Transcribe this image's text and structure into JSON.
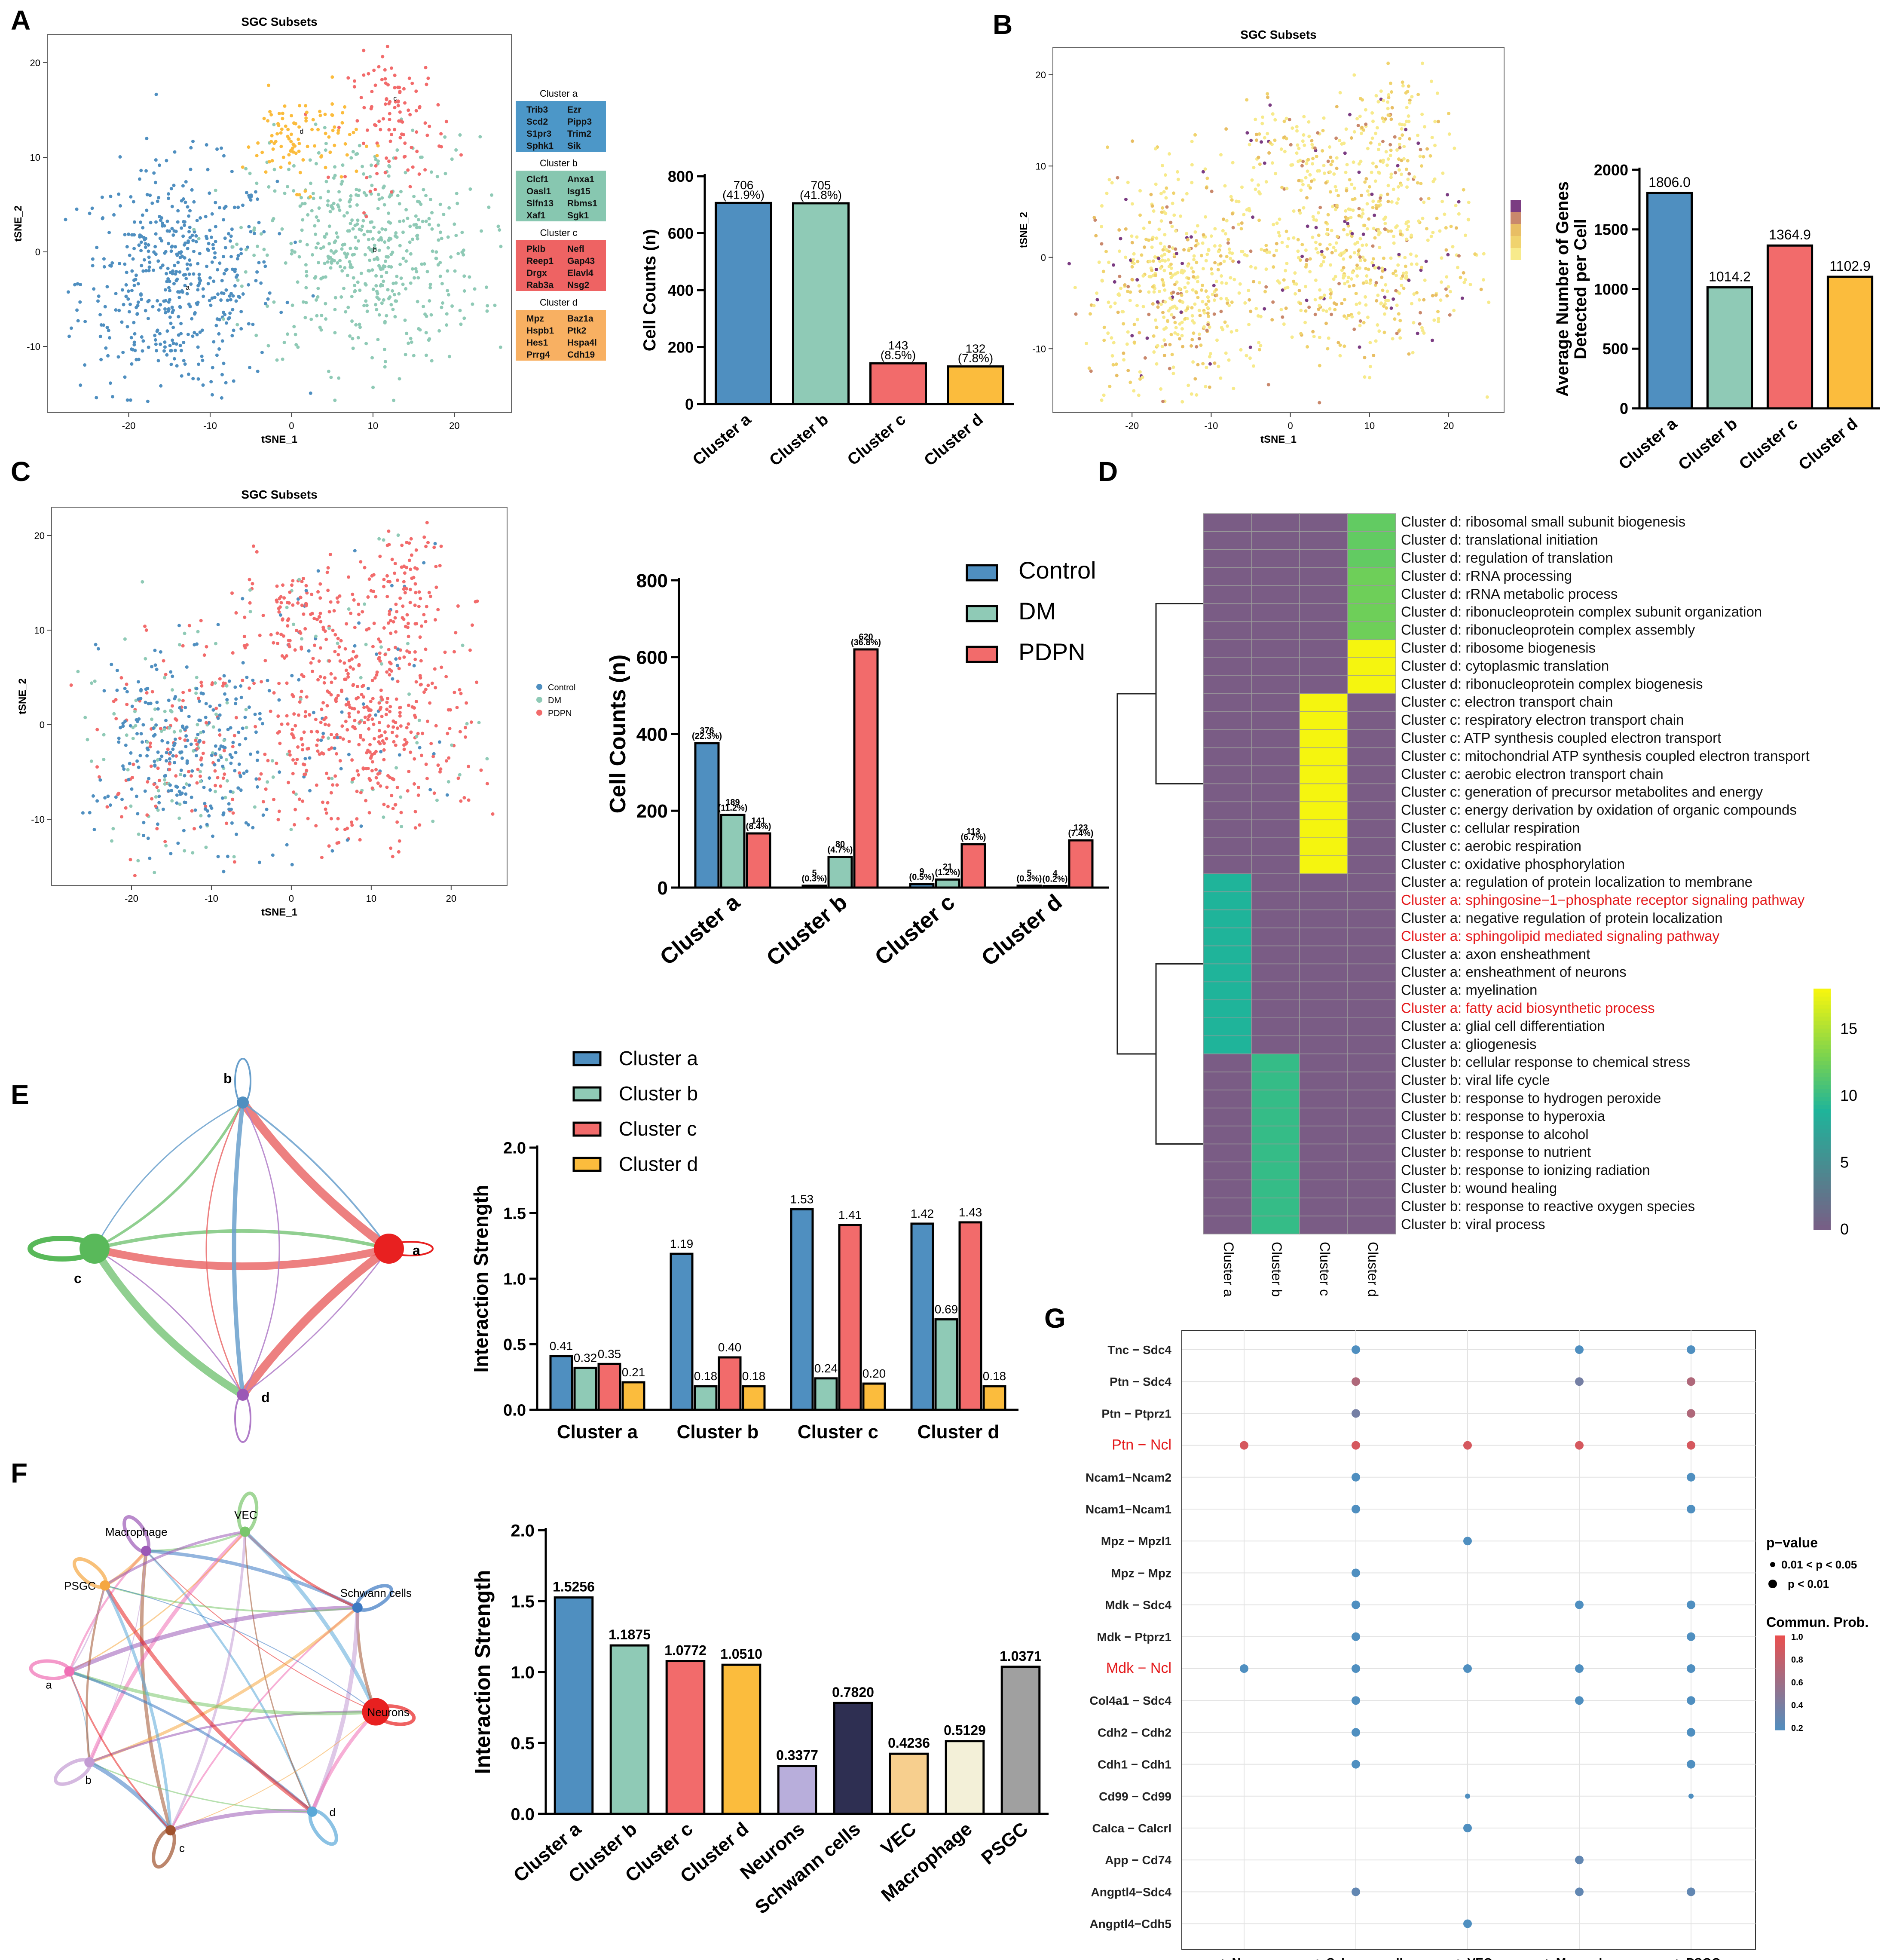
{
  "panel_labels": {
    "A": "A",
    "B": "B",
    "C": "C",
    "D": "D",
    "E": "E",
    "F": "F",
    "G": "G"
  },
  "colors": {
    "cluster_a": "#4f8fc0",
    "cluster_b": "#8fcab6",
    "cluster_c": "#f26b6b",
    "cluster_d": "#fbbc3d",
    "neurons": "#b8aedb",
    "schwann": "#2e2f52",
    "vec": "#f7cf8e",
    "macrophage": "#f3f0d8",
    "psgc": "#a0a0a0",
    "heat_low": "#7a5c85",
    "heat_mid": "#1fb49a",
    "heat_high": "#f5f50f",
    "red_text": "#e41a1c"
  },
  "tsne": {
    "title": "SGC Subsets",
    "xlabel": "tSNE_1",
    "ylabel": "tSNE_2",
    "x_ticks": [
      "-20",
      "-10",
      "0",
      "10",
      "20"
    ],
    "y_ticks": [
      "-10",
      "0",
      "10",
      "20"
    ],
    "point_labels": {
      "a": "a",
      "b": "b",
      "c": "c",
      "d": "d"
    }
  },
  "markers": [
    {
      "title": "Cluster a",
      "genes": [
        "Trib3",
        "Ezr",
        "Scd2",
        "Pipp3",
        "S1pr3",
        "Trim2",
        "Sphk1",
        "Sik"
      ]
    },
    {
      "title": "Cluster b",
      "genes": [
        "Clcf1",
        "Anxa1",
        "Oasl1",
        "Isg15",
        "Slfn13",
        "Rbms1",
        "Xaf1",
        "Sgk1"
      ]
    },
    {
      "title": "Cluster c",
      "genes": [
        "Pklb",
        "Nefl",
        "Reep1",
        "Gap43",
        "Drgx",
        "Elavl4",
        "Rab3a",
        "Nsg2"
      ]
    },
    {
      "title": "Cluster d",
      "genes": [
        "Mpz",
        "Baz1a",
        "Hspb1",
        "Ptk2",
        "Hes1",
        "Hspa4l",
        "Prrg4",
        "Cdh19"
      ]
    }
  ],
  "legend_C": [
    "Control",
    "DM",
    "PDPN"
  ],
  "legend_E": [
    "Cluster a",
    "Cluster b",
    "Cluster c",
    "Cluster d"
  ],
  "network_E_labels": [
    "a",
    "b",
    "c",
    "d"
  ],
  "network_F_labels": [
    "Macrophage",
    "VEC",
    "Schwann cells",
    "Neurons",
    "d",
    "c",
    "b",
    "a",
    "PSGC"
  ],
  "chart_data": [
    {
      "id": "A_bar",
      "type": "bar",
      "categories": [
        "Cluster a",
        "Cluster b",
        "Cluster c",
        "Cluster d"
      ],
      "values": [
        706,
        705,
        143,
        132
      ],
      "data_labels": [
        "706",
        "705",
        "143",
        "132"
      ],
      "data_labels_2": [
        "(41.9%)",
        "(41.8%)",
        "(8.5%)",
        "(7.8%)"
      ],
      "ylabel": "Cell Counts (n)",
      "ylim": [
        0,
        800
      ],
      "yticks": [
        "0",
        "200",
        "400",
        "600",
        "800"
      ]
    },
    {
      "id": "B_bar",
      "type": "bar",
      "categories": [
        "Cluster a",
        "Cluster b",
        "Cluster c",
        "Cluster d"
      ],
      "values": [
        1806.0,
        1014.2,
        1364.9,
        1102.9
      ],
      "data_labels": [
        "1806.0",
        "1014.2",
        "1364.9",
        "1102.9"
      ],
      "ylabel": "Average Number of Genes Detected per Cell",
      "ylim": [
        0,
        2000
      ],
      "yticks": [
        "0",
        "500",
        "1000",
        "1500",
        "2000"
      ]
    },
    {
      "id": "C_bar",
      "type": "bar",
      "categories": [
        "Cluster a",
        "Cluster b",
        "Cluster c",
        "Cluster d"
      ],
      "series": [
        {
          "name": "Control",
          "values": [
            376,
            5,
            9,
            5
          ],
          "labels": [
            "376",
            "5",
            "9",
            "5"
          ],
          "labels_2": [
            "(22.3%)",
            "(0.3%)",
            "(0.5%)",
            "(0.3%)"
          ]
        },
        {
          "name": "DM",
          "values": [
            189,
            80,
            21,
            4
          ],
          "labels": [
            "189",
            "80",
            "21",
            "4"
          ],
          "labels_2": [
            "(11.2%)",
            "(4.7%)",
            "(1.2%)",
            "(0.2%)"
          ]
        },
        {
          "name": "PDPN",
          "values": [
            141,
            620,
            113,
            123
          ],
          "labels": [
            "141",
            "620",
            "113",
            "123"
          ],
          "labels_2": [
            "(8.4%)",
            "(36.8%)",
            "(6.7%)",
            "(7.4%)"
          ]
        }
      ],
      "ylabel": "Cell Counts (n)",
      "ylim": [
        0,
        800
      ],
      "yticks": [
        "0",
        "200",
        "400",
        "600",
        "800"
      ]
    },
    {
      "id": "D_heatmap",
      "type": "heatmap",
      "columns": [
        "Cluster a",
        "Cluster b",
        "Cluster c",
        "Cluster d"
      ],
      "rows": [
        {
          "label": "Cluster d: ribosomal small subunit biogenesis",
          "col": 3,
          "value": 12
        },
        {
          "label": "Cluster d: translational initiation",
          "col": 3,
          "value": 12
        },
        {
          "label": "Cluster d: regulation of translation",
          "col": 3,
          "value": 12
        },
        {
          "label": "Cluster d: rRNA processing",
          "col": 3,
          "value": 12.5
        },
        {
          "label": "Cluster d: rRNA metabolic process",
          "col": 3,
          "value": 12.5
        },
        {
          "label": "Cluster d: ribonucleoprotein complex subunit organization",
          "col": 3,
          "value": 12.5
        },
        {
          "label": "Cluster d: ribonucleoprotein complex assembly",
          "col": 3,
          "value": 12.5
        },
        {
          "label": "Cluster d: ribosome biogenesis",
          "col": 3,
          "value": 18
        },
        {
          "label": "Cluster d: cytoplasmic translation",
          "col": 3,
          "value": 18
        },
        {
          "label": "Cluster d: ribonucleoprotein complex biogenesis",
          "col": 3,
          "value": 18
        },
        {
          "label": "Cluster c: electron transport chain",
          "col": 2,
          "value": 18
        },
        {
          "label": "Cluster c: respiratory electron transport chain",
          "col": 2,
          "value": 18
        },
        {
          "label": "Cluster c: ATP synthesis coupled electron transport",
          "col": 2,
          "value": 18
        },
        {
          "label": "Cluster c: mitochondrial ATP synthesis coupled electron transport",
          "col": 2,
          "value": 18
        },
        {
          "label": "Cluster c: aerobic electron transport chain",
          "col": 2,
          "value": 18
        },
        {
          "label": "Cluster c: generation of precursor metabolites and energy",
          "col": 2,
          "value": 18
        },
        {
          "label": "Cluster c: energy derivation by oxidation of organic compounds",
          "col": 2,
          "value": 18
        },
        {
          "label": "Cluster c: cellular respiration",
          "col": 2,
          "value": 18
        },
        {
          "label": "Cluster c: aerobic respiration",
          "col": 2,
          "value": 18
        },
        {
          "label": "Cluster c: oxidative phosphorylation",
          "col": 2,
          "value": 18
        },
        {
          "label": "Cluster a: regulation of protein localization to membrane",
          "col": 0,
          "value": 9
        },
        {
          "label": "Cluster a: sphingosine−1−phosphate receptor signaling pathway",
          "col": 0,
          "value": 9,
          "highlight": true
        },
        {
          "label": "Cluster a: negative regulation of protein localization",
          "col": 0,
          "value": 9
        },
        {
          "label": "Cluster a: sphingolipid mediated signaling pathway",
          "col": 0,
          "value": 9,
          "highlight": true
        },
        {
          "label": "Cluster a: axon ensheathment",
          "col": 0,
          "value": 9
        },
        {
          "label": "Cluster a: ensheathment of neurons",
          "col": 0,
          "value": 9
        },
        {
          "label": "Cluster a: myelination",
          "col": 0,
          "value": 9
        },
        {
          "label": "Cluster a: fatty acid biosynthetic process",
          "col": 0,
          "value": 9,
          "highlight": true
        },
        {
          "label": "Cluster a: glial cell differentiation",
          "col": 0,
          "value": 9
        },
        {
          "label": "Cluster a: gliogenesis",
          "col": 0,
          "value": 9
        },
        {
          "label": "Cluster b: cellular response to chemical stress",
          "col": 1,
          "value": 10
        },
        {
          "label": "Cluster b: viral life cycle",
          "col": 1,
          "value": 10
        },
        {
          "label": "Cluster b: response to hydrogen peroxide",
          "col": 1,
          "value": 10
        },
        {
          "label": "Cluster b: response to hyperoxia",
          "col": 1,
          "value": 10
        },
        {
          "label": "Cluster b: response to alcohol",
          "col": 1,
          "value": 10
        },
        {
          "label": "Cluster b: response to nutrient",
          "col": 1,
          "value": 10
        },
        {
          "label": "Cluster b: response to ionizing radiation",
          "col": 1,
          "value": 10
        },
        {
          "label": "Cluster b: wound healing",
          "col": 1,
          "value": 10
        },
        {
          "label": "Cluster b: response to reactive oxygen species",
          "col": 1,
          "value": 10
        },
        {
          "label": "Cluster b: viral process",
          "col": 1,
          "value": 10
        }
      ],
      "colorbar_ticks": [
        "0",
        "5",
        "10",
        "15"
      ],
      "vrange": [
        0,
        18
      ]
    },
    {
      "id": "E_bar",
      "type": "bar",
      "categories": [
        "Cluster a",
        "Cluster b",
        "Cluster c",
        "Cluster d"
      ],
      "series": [
        {
          "name": "Cluster a",
          "values": [
            0.41,
            1.19,
            1.53,
            1.42
          ],
          "labels": [
            "0.41",
            "1.19",
            "1.53",
            "1.42"
          ]
        },
        {
          "name": "Cluster b",
          "values": [
            0.32,
            0.18,
            0.24,
            0.69
          ],
          "labels": [
            "0.32",
            "0.18",
            "0.24",
            "0.69"
          ]
        },
        {
          "name": "Cluster c",
          "values": [
            0.35,
            0.4,
            1.41,
            1.43
          ],
          "labels": [
            "0.35",
            "0.40",
            "1.41",
            "1.43"
          ]
        },
        {
          "name": "Cluster d",
          "values": [
            0.21,
            0.18,
            0.2,
            0.18
          ],
          "labels": [
            "0.21",
            "0.18",
            "0.20",
            "0.18"
          ]
        }
      ],
      "ylabel": "Interaction Strength",
      "ylim": [
        0,
        2.0
      ],
      "yticks": [
        "0.0",
        "0.5",
        "1.0",
        "1.5",
        "2.0"
      ]
    },
    {
      "id": "F_bar",
      "type": "bar",
      "categories": [
        "Cluster a",
        "Cluster b",
        "Cluster c",
        "Cluster d",
        "Neurons",
        "Schwann cells",
        "VEC",
        "Macrophage",
        "PSGC"
      ],
      "values": [
        1.5256,
        1.1875,
        1.0772,
        1.051,
        0.3377,
        0.782,
        0.4236,
        0.5129,
        1.0371
      ],
      "data_labels": [
        "1.5256",
        "1.1875",
        "1.0772",
        "1.0510",
        "0.3377",
        "0.7820",
        "0.4236",
        "0.5129",
        "1.0371"
      ],
      "ylabel": "Interaction Strength",
      "ylim": [
        0,
        2.0
      ],
      "yticks": [
        "0.0",
        "0.5",
        "1.0",
        "1.5",
        "2.0"
      ]
    },
    {
      "id": "G_dot",
      "type": "scatter",
      "columns": [
        "a -> Neurons",
        "a -> Schwann cells",
        "a -> VEC",
        "a -> Macrophage",
        "a -> PSGC"
      ],
      "rows": [
        {
          "label": "Tnc  − Sdc4",
          "dots": [
            null,
            0.2,
            null,
            0.2,
            0.2
          ]
        },
        {
          "label": "Ptn  − Sdc4",
          "dots": [
            null,
            0.7,
            null,
            0.4,
            0.7
          ]
        },
        {
          "label": "Ptn  − Ptprz1",
          "dots": [
            null,
            0.4,
            null,
            null,
            0.7
          ]
        },
        {
          "label": "Ptn  − Ncl",
          "dots": [
            0.9,
            0.9,
            0.9,
            0.9,
            0.9
          ],
          "highlight": true
        },
        {
          "label": "Ncam1−Ncam2",
          "dots": [
            null,
            0.2,
            null,
            null,
            0.2
          ]
        },
        {
          "label": "Ncam1−Ncam1",
          "dots": [
            null,
            0.2,
            null,
            null,
            0.2
          ]
        },
        {
          "label": "Mpz  − Mpzl1",
          "dots": [
            null,
            null,
            0.2,
            null,
            null
          ]
        },
        {
          "label": "Mpz  − Mpz",
          "dots": [
            null,
            0.2,
            null,
            null,
            null
          ]
        },
        {
          "label": "Mdk  − Sdc4",
          "dots": [
            null,
            0.2,
            null,
            0.2,
            0.2
          ]
        },
        {
          "label": "Mdk  − Ptprz1",
          "dots": [
            null,
            0.2,
            null,
            null,
            0.2
          ]
        },
        {
          "label": "Mdk  − Ncl",
          "dots": [
            0.2,
            0.2,
            0.2,
            0.2,
            0.2
          ],
          "highlight": true
        },
        {
          "label": "Col4a1  − Sdc4",
          "dots": [
            null,
            0.2,
            null,
            0.2,
            0.2
          ]
        },
        {
          "label": "Cdh2  − Cdh2",
          "dots": [
            null,
            0.2,
            null,
            null,
            0.2
          ]
        },
        {
          "label": "Cdh1  − Cdh1",
          "dots": [
            null,
            0.2,
            null,
            null,
            0.2
          ]
        },
        {
          "label": "Cd99  − Cd99",
          "dots": [
            null,
            null,
            0.2,
            null,
            0.2
          ],
          "small": true
        },
        {
          "label": "Calca  − Calcrl",
          "dots": [
            null,
            null,
            0.2,
            null,
            null
          ]
        },
        {
          "label": "App  − Cd74",
          "dots": [
            null,
            null,
            null,
            0.3,
            null
          ]
        },
        {
          "label": "Angptl4−Sdc4",
          "dots": [
            null,
            0.3,
            null,
            0.3,
            0.3
          ]
        },
        {
          "label": "Angptl4−Cdh5",
          "dots": [
            null,
            null,
            0.2,
            null,
            null
          ]
        }
      ],
      "legend_title_p": "p−value",
      "legend_p": [
        "0.01 < p < 0.05",
        "p < 0.01"
      ],
      "legend_title_prob": "Commun. Prob.",
      "prob_ticks": [
        "1.0",
        "0.8",
        "0.6",
        "0.4",
        "0.2"
      ]
    }
  ]
}
